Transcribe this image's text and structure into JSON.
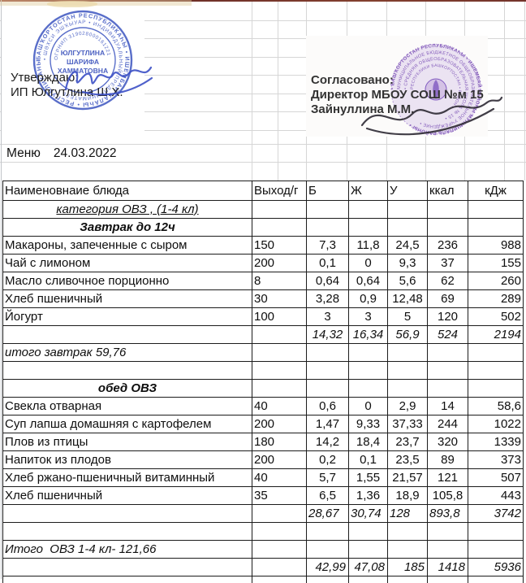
{
  "menu_header": {
    "label": "Меню",
    "date": "24.03.2022"
  },
  "approvals": {
    "left": {
      "prefix": "Утверждаю:",
      "entity": "ИП Юлгутлина Ш.Х.",
      "stamp": {
        "color": "#3d55c0",
        "center_line1": "ЮЛГУТЛИНА",
        "center_line2": "ШАРИФА",
        "center_line3": "ХАММАТОВНА",
        "ring_outer": "БАШҠОРТОСТАН РЕСПУБЛИКАҺЫ • ИШЕМБАЙ ҠАЛАҺЫ • РЕСПУБЛИКАНЫ •",
        "ring_mid": "• ШӘХСИ ЭШҠЫУАР • ИНДИВИДУАЛЬНЫЙ ПРЕДПРИНИМАТЕЛЬ •",
        "arc_number": "ОГРНИП 319028000161221"
      }
    },
    "right": {
      "prefix": "Согласовано:",
      "line2": "Директор МБОУ СОШ №м 15",
      "line3": "Зайнуллина М.М.",
      "stamp": {
        "color": "#7c52ba",
        "ring1": "• БАШҠОРТОСТАН РЕСПУБЛИКАҺЫ • ИШЕМБАЙ РАЙОНЫ МУНИЦИПАЛЬ РАЙОНЫ •",
        "ring2": "МУНИЦИПАЛЬНОЕ БЮДЖЕТНОЕ ОБЩЕОБРАЗОВАТЕЛЬНОЕ УЧРЕЖДЕНИЕ •",
        "ring3": "• СРЕДНЯЯ ОБЩЕОБРАЗОВАТЕЛЬНАЯ ШКОЛА № 15 •",
        "ring4": "РЕСПУБЛИКИ БАШКОРТОСТАН • РАЙОН •"
      }
    }
  },
  "table": {
    "headers": [
      "Наименовнаие блюда",
      "Выход/г",
      "Б",
      "Ж",
      "У",
      "ккал",
      "кДж"
    ],
    "rows": [
      {
        "type": "category",
        "name": "категория ОВЗ , (1-4 кл)",
        "cells": [
          "",
          "",
          "",
          "",
          "",
          ""
        ]
      },
      {
        "type": "section",
        "name": "Завтрак до 12ч",
        "cells": [
          "",
          "",
          "",
          "",
          "",
          ""
        ]
      },
      {
        "type": "item",
        "name": "Макароны, запеченные с сыром",
        "cells": [
          "150",
          "7,3",
          "11,8",
          "24,5",
          "236",
          "988"
        ]
      },
      {
        "type": "item",
        "name": "Чай с лимоном",
        "cells": [
          "200",
          "0,1",
          "0",
          "9,3",
          "37",
          "155"
        ]
      },
      {
        "type": "item",
        "name": "Масло сливочное порционно",
        "cells": [
          "8",
          "0,64",
          "0,64",
          "5,6",
          "62",
          "260"
        ]
      },
      {
        "type": "item",
        "name": "Хлеб пшеничный",
        "cells": [
          "30",
          "3,28",
          "0,9",
          "12,48",
          "69",
          "289"
        ]
      },
      {
        "type": "item",
        "name": "Йогурт",
        "cells": [
          "100",
          "3",
          "3",
          "5",
          "120",
          "502"
        ]
      },
      {
        "type": "subtotal",
        "name": "",
        "cells": [
          "",
          "14,32",
          "16,34",
          "56,9",
          "524",
          "2194"
        ]
      },
      {
        "type": "note",
        "name": "итого завтрак 59,76",
        "cells": [
          "",
          "",
          "",
          "",
          "",
          ""
        ]
      },
      {
        "type": "empty",
        "name": "",
        "cells": [
          "",
          "",
          "",
          "",
          "",
          ""
        ]
      },
      {
        "type": "section",
        "name": "обед ОВЗ",
        "cells": [
          "",
          "",
          "",
          "",
          "",
          ""
        ]
      },
      {
        "type": "item",
        "name": "Свекла отварная",
        "cells": [
          "40",
          "0,6",
          "0",
          "2,9",
          "14",
          "58,6"
        ]
      },
      {
        "type": "item",
        "name": "Суп лапша домашняя с картофелем",
        "cells": [
          "200",
          "1,47",
          "9,33",
          "37,33",
          "244",
          "1022"
        ]
      },
      {
        "type": "item",
        "name": "Плов из птицы",
        "cells": [
          "180",
          "14,2",
          "18,4",
          "23,7",
          "320",
          "1339"
        ]
      },
      {
        "type": "item",
        "name": "Напиток из плодов",
        "cells": [
          "200",
          "0,2",
          "0,1",
          "23,5",
          "89",
          "373"
        ]
      },
      {
        "type": "item",
        "name": "Хлеб ржано-пшеничный витаминный",
        "cells": [
          "40",
          "5,7",
          "1,55",
          "21,57",
          "121",
          "507"
        ]
      },
      {
        "type": "item",
        "name": "Хлеб пшеничный",
        "cells": [
          "35",
          "6,5",
          "1,36",
          "18,9",
          "105,8",
          "443"
        ]
      },
      {
        "type": "subtotal-left",
        "name": "",
        "cells": [
          "",
          "28,67",
          "30,74",
          "128",
          "893,8",
          "3742"
        ]
      },
      {
        "type": "empty",
        "name": "",
        "cells": [
          "",
          "",
          "",
          "",
          "",
          ""
        ]
      },
      {
        "type": "note",
        "name": "Итого  ОВЗ 1-4 кл- 121,66",
        "cells": [
          "",
          "",
          "",
          "",
          "",
          ""
        ]
      },
      {
        "type": "grandtotal",
        "name": "",
        "cells": [
          "",
          "42,99",
          "47,08",
          "185",
          "1418",
          "5936"
        ]
      }
    ]
  }
}
